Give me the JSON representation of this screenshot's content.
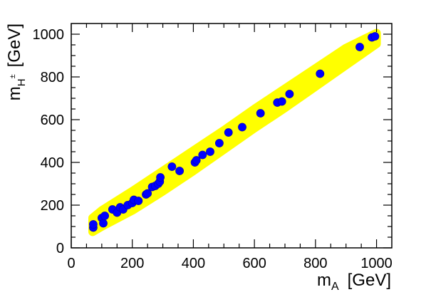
{
  "chart_data": {
    "type": "scatter",
    "title": "",
    "xlabel": {
      "main": "m",
      "sub": "A",
      "unit": "[GeV]"
    },
    "ylabel": {
      "main": "m",
      "sub": "H",
      "sup": "±",
      "unit": "[GeV]"
    },
    "xlim": [
      0,
      1050
    ],
    "ylim": [
      0,
      1050
    ],
    "xticks": [
      0,
      200,
      400,
      600,
      800,
      1000
    ],
    "yticks": [
      0,
      200,
      400,
      600,
      800,
      1000
    ],
    "xtick_labels": [
      "0",
      "200",
      "400",
      "600",
      "800",
      "1000"
    ],
    "ytick_labels": [
      "0",
      "200",
      "400",
      "600",
      "800",
      "1000"
    ],
    "grid": false,
    "legend": null,
    "band": {
      "color": "#ffff00",
      "description_points": [
        {
          "x": 70,
          "lower": 75,
          "upper": 140
        },
        {
          "x": 100,
          "lower": 100,
          "upper": 175
        },
        {
          "x": 200,
          "lower": 175,
          "upper": 265
        },
        {
          "x": 300,
          "lower": 265,
          "upper": 360
        },
        {
          "x": 400,
          "lower": 360,
          "upper": 455
        },
        {
          "x": 500,
          "lower": 460,
          "upper": 550
        },
        {
          "x": 600,
          "lower": 560,
          "upper": 650
        },
        {
          "x": 700,
          "lower": 655,
          "upper": 745
        },
        {
          "x": 800,
          "lower": 755,
          "upper": 840
        },
        {
          "x": 900,
          "lower": 855,
          "upper": 935
        },
        {
          "x": 1000,
          "lower": 955,
          "upper": 1005
        }
      ]
    },
    "series": [
      {
        "color": "#0000ff",
        "points": [
          [
            72,
            95
          ],
          [
            72,
            110
          ],
          [
            100,
            140
          ],
          [
            105,
            115
          ],
          [
            110,
            150
          ],
          [
            135,
            180
          ],
          [
            150,
            165
          ],
          [
            160,
            190
          ],
          [
            170,
            180
          ],
          [
            185,
            200
          ],
          [
            200,
            210
          ],
          [
            205,
            225
          ],
          [
            220,
            220
          ],
          [
            245,
            250
          ],
          [
            250,
            255
          ],
          [
            265,
            285
          ],
          [
            275,
            290
          ],
          [
            285,
            300
          ],
          [
            290,
            310
          ],
          [
            292,
            330
          ],
          [
            330,
            380
          ],
          [
            355,
            360
          ],
          [
            405,
            400
          ],
          [
            410,
            410
          ],
          [
            430,
            435
          ],
          [
            455,
            450
          ],
          [
            485,
            490
          ],
          [
            515,
            540
          ],
          [
            560,
            565
          ],
          [
            620,
            630
          ],
          [
            675,
            680
          ],
          [
            690,
            685
          ],
          [
            715,
            720
          ],
          [
            815,
            815
          ],
          [
            945,
            940
          ],
          [
            985,
            985
          ],
          [
            995,
            990
          ]
        ]
      }
    ]
  }
}
